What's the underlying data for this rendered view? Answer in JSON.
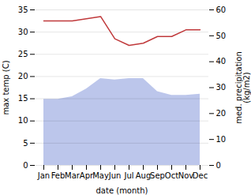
{
  "chart_data": {
    "type": "line",
    "categories": [
      "Jan",
      "Feb",
      "Mar",
      "Apr",
      "May",
      "Jun",
      "Jul",
      "Aug",
      "Sep",
      "Oct",
      "Nov",
      "Dec"
    ],
    "xlabel": "date (month)",
    "ylabel": "max temp (C)",
    "y2label": "med. precipitation\n(kg/m2)",
    "ylim": [
      0,
      35
    ],
    "yticks": [
      0,
      5,
      10,
      15,
      20,
      25,
      30,
      35
    ],
    "y2lim": [
      0,
      60
    ],
    "y2ticks": [
      0,
      10,
      20,
      30,
      40,
      50,
      60
    ],
    "grid": true,
    "series": [
      {
        "type": "area",
        "axis": "y2",
        "color": "#b0bce8",
        "values": [
          25.5,
          25.5,
          26.5,
          29.5,
          33.5,
          33.0,
          33.5,
          33.5,
          28.5,
          27.0,
          27.0,
          27.5
        ]
      },
      {
        "type": "line",
        "color": "#c0393b",
        "values": [
          32.5,
          32.5,
          32.5,
          33.0,
          33.5,
          28.5,
          27.0,
          27.5,
          29.0,
          29.0,
          30.5,
          30.5
        ]
      }
    ]
  }
}
